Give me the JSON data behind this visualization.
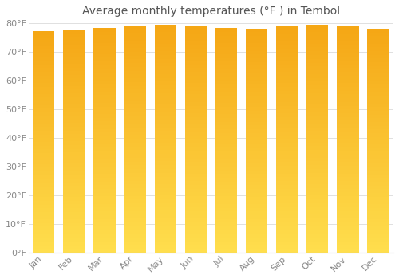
{
  "title": "Average monthly temperatures (°F ) in Tembol",
  "months": [
    "Jan",
    "Feb",
    "Mar",
    "Apr",
    "May",
    "Jun",
    "Jul",
    "Aug",
    "Sep",
    "Oct",
    "Nov",
    "Dec"
  ],
  "values": [
    77.2,
    77.5,
    78.4,
    79.3,
    79.5,
    78.8,
    78.3,
    78.2,
    78.8,
    79.5,
    78.8,
    78.1
  ],
  "bar_color_top": "#F5A800",
  "bar_color_bottom": "#FFD84D",
  "background_color": "#FFFFFF",
  "plot_bg_color": "#FFFFFF",
  "grid_color": "#E0E0E0",
  "text_color": "#888888",
  "title_color": "#555555",
  "ylim": [
    0,
    80
  ],
  "ytick_values": [
    0,
    10,
    20,
    30,
    40,
    50,
    60,
    70,
    80
  ],
  "title_fontsize": 10,
  "tick_fontsize": 8,
  "bar_width": 0.72,
  "n_grad": 60
}
